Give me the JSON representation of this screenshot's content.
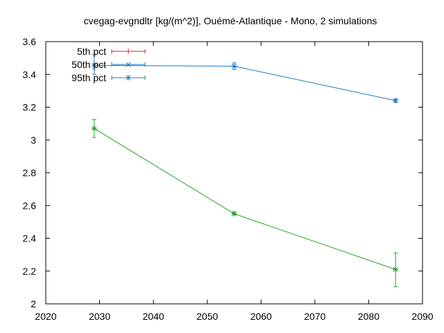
{
  "chart_data": {
    "type": "line",
    "title": "cvegag-evgndltr [kg/(m^2)], Ouémé-Atlantique - Mono, 2 simulations",
    "xlabel": "",
    "ylabel": "",
    "xlim": [
      2020,
      2090
    ],
    "ylim": [
      2,
      3.6
    ],
    "x_ticks": [
      "2020",
      "2030",
      "2040",
      "2050",
      "2060",
      "2070",
      "2080",
      "2090"
    ],
    "y_ticks": [
      "2",
      "2.2",
      "2.4",
      "2.6",
      "2.8",
      "3",
      "3.2",
      "3.4",
      "3.6"
    ],
    "grid": false,
    "legend_position": "top-left",
    "legend": [
      {
        "label": "5th pct",
        "color": "#e41a1c",
        "marker": "plus"
      },
      {
        "label": "50th pct",
        "color": "#1a78c2",
        "marker": "cross"
      },
      {
        "label": "95th pct",
        "color": "#1a78c2",
        "marker": "star"
      }
    ],
    "series": [
      {
        "color": "#1a78c2",
        "x": [
          2029,
          2055,
          2085
        ],
        "y": [
          3.455,
          3.45,
          3.24
        ],
        "err_low": [
          3.4,
          3.43,
          3.23
        ],
        "err_high": [
          3.52,
          3.47,
          3.25
        ]
      },
      {
        "color": "#22a022",
        "x": [
          2029,
          2055,
          2085
        ],
        "y": [
          3.07,
          2.55,
          2.21
        ],
        "err_low": [
          3.015,
          2.545,
          2.105
        ],
        "err_high": [
          3.125,
          2.56,
          2.31
        ]
      }
    ]
  }
}
